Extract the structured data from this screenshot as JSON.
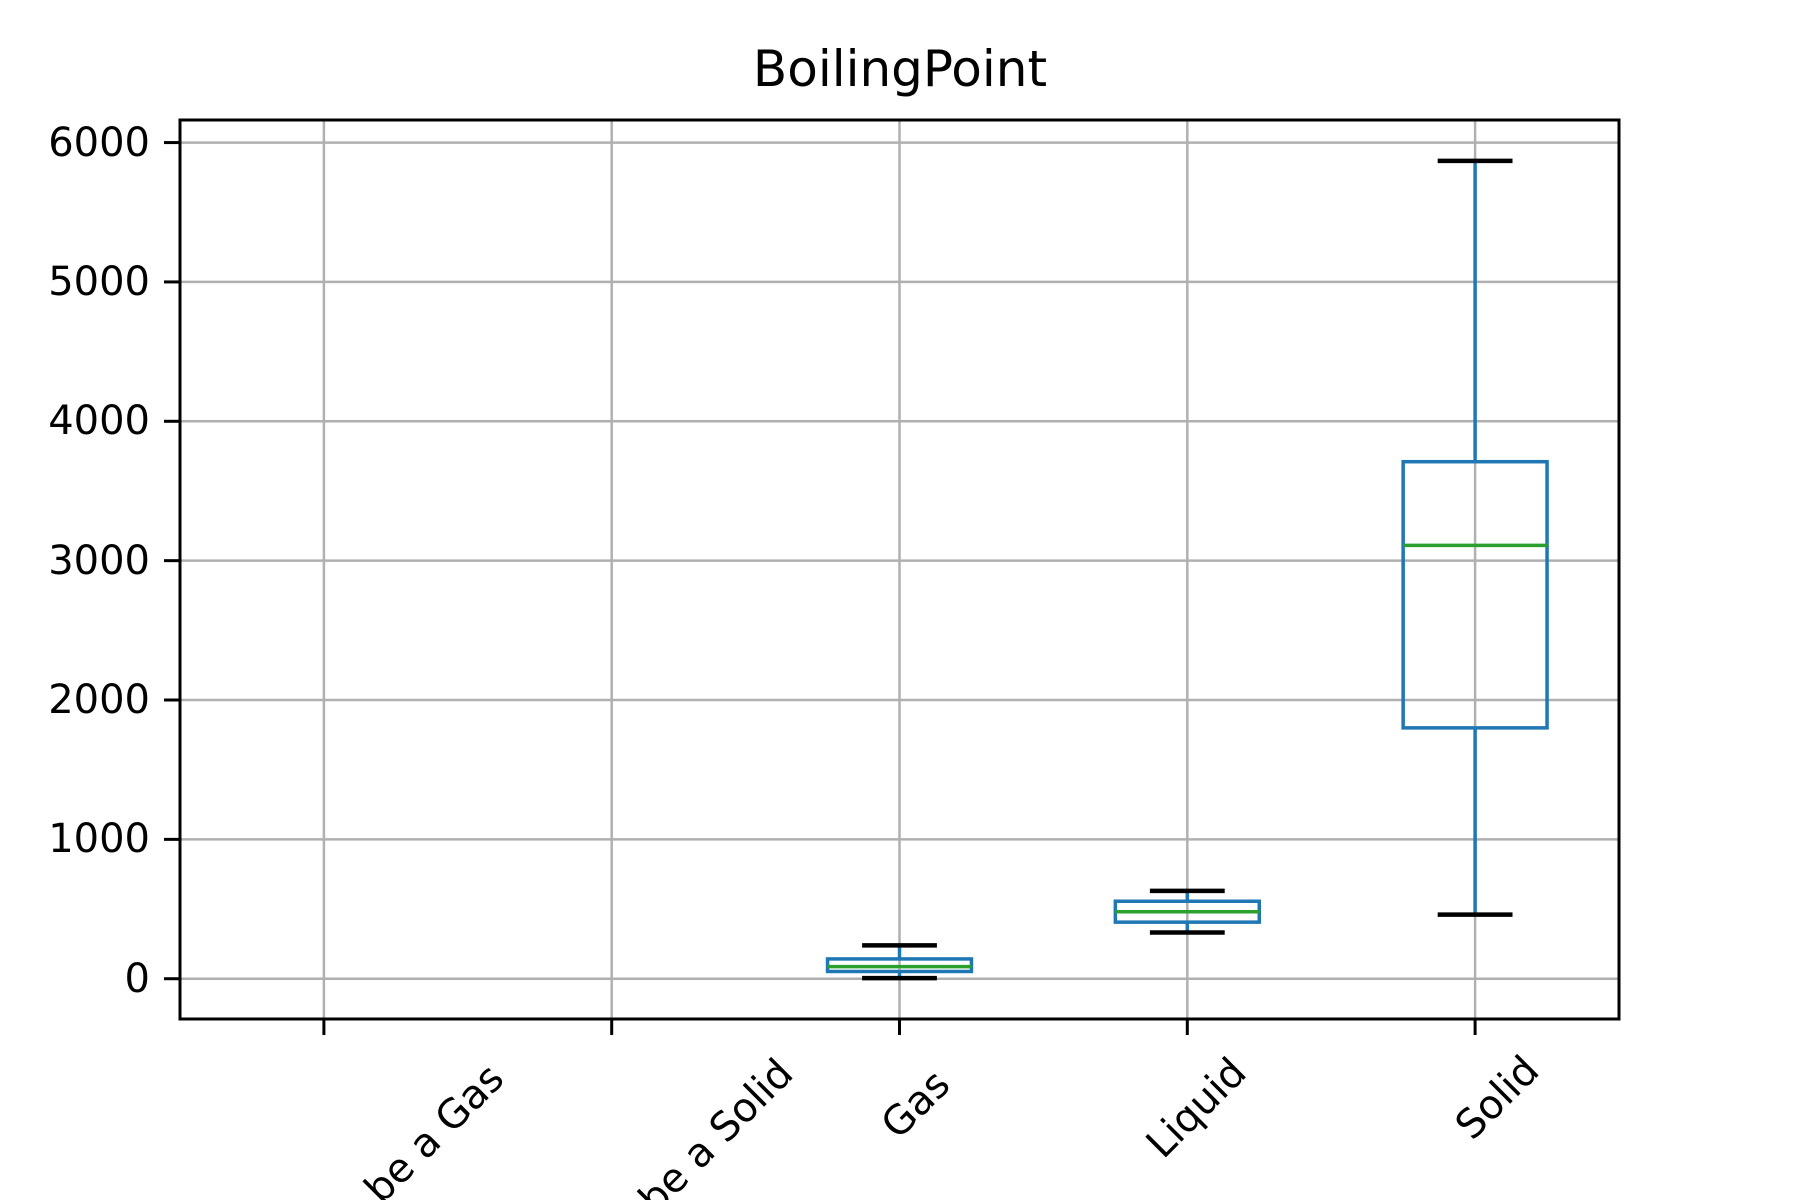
{
  "page": {
    "background": "#ffffff"
  },
  "chart_data": {
    "type": "boxplot",
    "title": "BoilingPoint",
    "categories": [
      "be a Gas",
      "be a Solid",
      "Gas",
      "Liquid",
      "Solid"
    ],
    "boxes": [
      {
        "category": "be a Gas",
        "whisker_low": null,
        "q1": null,
        "median": null,
        "q3": null,
        "whisker_high": null
      },
      {
        "category": "be a Solid",
        "whisker_low": null,
        "q1": null,
        "median": null,
        "q3": null,
        "whisker_high": null
      },
      {
        "category": "Gas",
        "whisker_low": 4,
        "q1": 52,
        "median": 87,
        "q3": 142,
        "whisker_high": 239
      },
      {
        "category": "Liquid",
        "whisker_low": 332,
        "q1": 406,
        "median": 481,
        "q3": 556,
        "whisker_high": 630
      },
      {
        "category": "Solid",
        "whisker_low": 460,
        "q1": 1800,
        "median": 3110,
        "q3": 3710,
        "whisker_high": 5869
      }
    ],
    "xlabel": "",
    "ylabel": "",
    "y_ticks": [
      "0",
      "1000",
      "2000",
      "3000",
      "4000",
      "5000",
      "6000"
    ],
    "y_tick_values": [
      0,
      1000,
      2000,
      3000,
      4000,
      5000,
      6000
    ],
    "ylim": [
      -289,
      6162
    ],
    "grid": true,
    "legend": false,
    "colors": {
      "box": "#1f77b4",
      "whisker": "#1f77b4",
      "median": "#2ca02c",
      "cap": "#000000",
      "grid": "#b0b0b0",
      "axis": "#000000",
      "text": "#000000",
      "background": "#ffffff"
    }
  }
}
